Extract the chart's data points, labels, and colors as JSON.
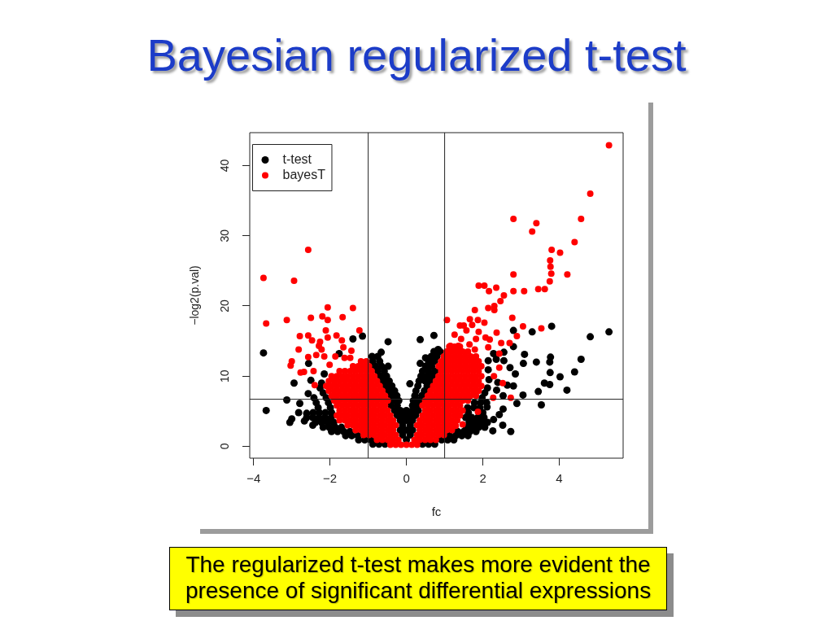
{
  "chart_data": {
    "type": "scatter",
    "title": "Bayesian regularized t-test",
    "xlabel": "fc",
    "ylabel": "−log2(p.val)",
    "xlim": [
      -4.1,
      5.67
    ],
    "ylim": [
      -1.7,
      44.7
    ],
    "xticks": [
      {
        "value": -4,
        "label": "−4"
      },
      {
        "value": -2,
        "label": "−2"
      },
      0,
      2,
      4
    ],
    "yticks": [
      0,
      10,
      20,
      30,
      40
    ],
    "legend": "top left",
    "marker": "circle",
    "ref_lines": [
      {
        "axis": "x",
        "value": -1
      },
      {
        "axis": "x",
        "value": 1
      },
      {
        "axis": "y",
        "value": 6.7
      }
    ],
    "annotations": [
      "The regularized t-test makes more evident the presence of significant differential expressions"
    ],
    "series": [
      {
        "name": "t-test",
        "color": "#000000",
        "x": [
          -0.56,
          -0.72,
          -0.88,
          -0.93,
          -1.09,
          -1.25,
          -1.27,
          -1.43,
          -1.59,
          -1.48,
          -1.64,
          -1.8,
          -1.96,
          -1.7,
          -1.86,
          -2.02,
          -2.18,
          -1.9,
          -2.06,
          -2.22,
          -2.38,
          -1.97,
          -2.13,
          -2.29,
          -2.45,
          -1.96,
          -2.12,
          -2.28,
          -2.44,
          -1.99,
          -2.31,
          -2.04,
          -2.36,
          -2.1,
          -2.42,
          -2.18,
          -2.26,
          -2.22,
          0.42,
          0.58,
          0.74,
          0.92,
          1.08,
          1.24,
          1.13,
          1.29,
          1.45,
          1.61,
          1.34,
          1.5,
          1.66,
          1.82,
          1.57,
          1.73,
          1.89,
          2.05,
          1.64,
          1.8,
          1.96,
          2.12,
          1.55,
          1.71,
          1.87,
          2.03,
          1.62,
          2,
          1.6,
          1.76,
          1.92,
          1.78,
          1.94,
          2.1,
          1.98,
          2.05,
          2.12,
          0,
          -0.1,
          0.1,
          -0.16,
          0,
          0.16,
          -0.1,
          0.1,
          -0.16,
          0,
          0.16,
          -0.24,
          -0.08,
          0.08,
          0.24,
          -0.31,
          -0.16,
          0,
          0.16,
          0.31,
          -0.4,
          -0.24,
          0.16,
          0.27,
          -0.34,
          -0.2,
          0.18,
          0.33,
          -0.4,
          -0.25,
          0.22,
          0.4,
          -0.47,
          -0.31,
          0.25,
          0.47,
          -0.54,
          -0.38,
          0.3,
          0.54,
          -0.61,
          -0.45,
          0.33,
          0.49,
          0.62,
          -0.68,
          -0.52,
          0.38,
          0.54,
          0.68,
          -0.75,
          -0.58,
          0.42,
          0.58,
          0.75,
          -0.82,
          -0.65,
          -0.48,
          0.5,
          0.66,
          -0.88,
          -0.7,
          0.58,
          0.74,
          -0.9,
          -0.75,
          0.65,
          0.8,
          0.72,
          0.88,
          0.09,
          -3.74,
          -3.67,
          -3.13,
          -2.94,
          -3,
          -3.05,
          -2.82,
          -2.79,
          -2.67,
          -2.61,
          -2.45,
          -2.57,
          -2.5,
          -2.56,
          -2.15,
          -1.76,
          -1.4,
          -1.15,
          -0.48,
          -0.66,
          -2.61,
          0.36,
          0.72,
          0.83,
          0.5,
          0.36,
          2.8,
          3.29,
          3.8,
          4.81,
          5.3,
          3.09,
          3.4,
          3.77,
          3.75,
          4.57,
          3.06,
          2.71,
          2.55,
          2.8,
          3.76,
          4.02,
          4.4,
          3.61,
          3.75,
          4.2,
          3.45,
          2.8,
          3.05,
          2.89,
          3.53,
          2.53,
          2.28,
          2.52,
          2.26,
          2.73,
          2.43,
          2.11,
          2.16,
          2.14,
          2.55,
          2.35,
          2.28,
          2.14,
          2.39,
          2.64,
          2.36,
          2.53,
          2.85
        ],
        "values": [
          0.3,
          0.3,
          0.3,
          0.9,
          0.9,
          0.9,
          1.5,
          1.5,
          1.5,
          2.1,
          2.1,
          2.1,
          2.1,
          2.7,
          2.7,
          2.7,
          2.7,
          3.4,
          3.4,
          3.4,
          3.4,
          4.1,
          4.1,
          4.1,
          4.1,
          4.8,
          4.8,
          4.8,
          4.8,
          5.5,
          5.5,
          6.2,
          6.2,
          6.9,
          6.9,
          7.6,
          8.3,
          9,
          0.3,
          0.3,
          0.3,
          0.9,
          0.9,
          0.9,
          1.5,
          1.5,
          1.5,
          1.5,
          2.1,
          2.1,
          2.1,
          2.1,
          2.7,
          2.7,
          2.7,
          2.7,
          3.4,
          3.4,
          3.4,
          3.4,
          4.1,
          4.1,
          4.1,
          4.1,
          4.8,
          4.8,
          5.5,
          5.5,
          5.5,
          6.2,
          6.2,
          6.2,
          6.9,
          7.6,
          8.3,
          0.9,
          1.6,
          1.6,
          2.3,
          2.3,
          2.3,
          3,
          3,
          3.7,
          3.7,
          3.7,
          4.4,
          4.4,
          4.4,
          4.4,
          5.1,
          5.1,
          5.1,
          5.1,
          5.1,
          5.8,
          5.8,
          5.8,
          5.8,
          6.5,
          6.5,
          6.5,
          6.5,
          7.2,
          7.2,
          7.2,
          7.2,
          7.9,
          7.9,
          7.9,
          7.9,
          8.6,
          8.6,
          8.6,
          8.6,
          9.3,
          9.3,
          9.3,
          9.3,
          9.3,
          10,
          10,
          10,
          10,
          10,
          10.7,
          10.7,
          10.7,
          10.7,
          10.7,
          11.4,
          11.4,
          11.4,
          11.4,
          11.4,
          12.1,
          12.1,
          12.1,
          12.1,
          12.8,
          12.8,
          12.8,
          12.8,
          13.5,
          13.5,
          8.9,
          13.3,
          5.1,
          6.6,
          9,
          3.9,
          3.4,
          4.8,
          6.1,
          3.6,
          4.1,
          3,
          7.5,
          9.4,
          11.8,
          10.3,
          13.2,
          15.3,
          15.7,
          14.9,
          13.4,
          4.7,
          15.2,
          15.8,
          13.8,
          12.6,
          11.8,
          16.5,
          16.3,
          17.1,
          15.6,
          16.3,
          13.1,
          12,
          12.7,
          12,
          12.4,
          11.8,
          11.2,
          13.4,
          14.2,
          10.5,
          9.9,
          10.6,
          9,
          8.8,
          8,
          7.8,
          8.6,
          7.3,
          6.1,
          5.9,
          5.3,
          3.8,
          3,
          2.2,
          2.1,
          4.5,
          5.6,
          9.5,
          10.9,
          12.2,
          12.4,
          13.2,
          12.2,
          9.1,
          8.7,
          8,
          7.2,
          10.3
        ]
      },
      {
        "name": "bayesT",
        "color": "#ff0000",
        "x": [
          0,
          -0.14,
          -0.28,
          -0.42,
          -0.21,
          -0.35,
          -0.49,
          -0.63,
          -0.77,
          -0.28,
          -0.42,
          -0.56,
          -0.7,
          -0.84,
          -0.98,
          -1.12,
          -0.35,
          -0.49,
          -0.63,
          -0.77,
          -0.91,
          -1.05,
          -1.19,
          -1.33,
          -0.28,
          -0.42,
          -0.56,
          -0.7,
          -0.84,
          -0.98,
          -1.12,
          -1.26,
          -1.4,
          -1.54,
          -0.35,
          -0.49,
          -0.63,
          -0.77,
          -0.91,
          -1.05,
          -1.19,
          -1.33,
          -1.47,
          -1.61,
          -1.75,
          -0.42,
          -0.56,
          -0.7,
          -0.84,
          -0.98,
          -1.12,
          -1.26,
          -1.4,
          -1.54,
          -1.68,
          -1.82,
          -0.49,
          -0.63,
          -0.77,
          -0.91,
          -1.05,
          -1.19,
          -1.33,
          -1.47,
          -1.61,
          -1.75,
          -0.56,
          -0.7,
          -0.84,
          -0.98,
          -1.12,
          -1.26,
          -1.4,
          -1.54,
          -1.68,
          -1.82,
          -0.49,
          -0.63,
          -0.77,
          -0.91,
          -1.05,
          -1.19,
          -1.33,
          -1.47,
          -1.61,
          -1.75,
          -1.89,
          -0.56,
          -0.7,
          -0.84,
          -0.98,
          -1.12,
          -1.26,
          -1.4,
          -1.54,
          -1.68,
          -1.82,
          -1.96,
          -0.63,
          -0.77,
          -0.91,
          -1.05,
          -1.19,
          -1.33,
          -1.47,
          -1.61,
          -1.75,
          -1.89,
          -2.03,
          -0.7,
          -0.84,
          -0.98,
          -1.12,
          -1.26,
          -1.4,
          -1.54,
          -1.68,
          -1.82,
          -1.96,
          -2.1,
          -0.77,
          -0.91,
          -1.05,
          -1.19,
          -1.33,
          -1.47,
          -1.61,
          -1.75,
          -1.89,
          -2.03,
          -0.84,
          -0.98,
          -1.12,
          -1.26,
          -1.4,
          -1.54,
          -1.68,
          -1.82,
          -1.96,
          -0.91,
          -1.05,
          -1.19,
          -1.33,
          -1.47,
          -1.61,
          -1.75,
          -0.98,
          -1.12,
          -1.26,
          -1.4,
          -1.05,
          -1.19,
          0.14,
          0.28,
          0.21,
          0.35,
          0.49,
          0.63,
          0.77,
          0.28,
          0.42,
          0.56,
          0.7,
          0.84,
          0.98,
          0.35,
          0.49,
          0.63,
          0.77,
          0.91,
          1.05,
          1.19,
          0.28,
          0.42,
          0.56,
          0.7,
          0.84,
          0.98,
          1.12,
          1.26,
          0.35,
          0.49,
          0.63,
          0.77,
          0.91,
          1.05,
          1.19,
          1.33,
          0.42,
          0.56,
          0.7,
          0.84,
          0.98,
          1.12,
          1.26,
          1.4,
          0.49,
          0.63,
          0.77,
          0.91,
          1.05,
          1.19,
          1.33,
          1.47,
          0.42,
          0.56,
          0.7,
          0.84,
          0.98,
          1.12,
          1.26,
          1.4,
          0.49,
          0.63,
          0.77,
          0.91,
          1.05,
          1.19,
          1.33,
          1.47,
          1.61,
          0.56,
          0.7,
          0.84,
          0.98,
          1.12,
          1.26,
          1.4,
          1.54,
          1.68,
          1.82,
          0.63,
          0.77,
          0.91,
          1.05,
          1.19,
          1.33,
          1.47,
          1.61,
          1.75,
          1.89,
          0.7,
          0.84,
          0.98,
          1.12,
          1.26,
          1.4,
          1.54,
          1.68,
          1.82,
          1.96,
          0.77,
          0.91,
          1.05,
          1.19,
          1.33,
          1.47,
          1.61,
          1.75,
          1.89,
          0.84,
          0.98,
          1.12,
          1.26,
          1.4,
          1.54,
          1.68,
          1.82,
          1.96,
          0.91,
          1.05,
          1.19,
          1.33,
          1.47,
          1.61,
          1.75,
          1.89,
          0.84,
          0.98,
          1.12,
          1.26,
          1.4,
          1.54,
          1.68,
          1.82,
          1.96,
          0.91,
          1.05,
          1.19,
          1.33,
          1.47,
          1.61,
          1.75,
          1.89,
          0.98,
          1.12,
          1.26,
          1.4,
          1.54,
          1.68,
          1.82,
          1.05,
          1.19,
          1.33,
          1.47,
          1.61,
          1.12,
          1.26,
          1.4,
          -3.74,
          -2.57,
          -2.94,
          -3.67,
          -3.13,
          -2.5,
          -2.2,
          -2.06,
          -2.06,
          -1.67,
          -1.4,
          -2.79,
          -2.57,
          -2.47,
          -2.82,
          -2.57,
          -3,
          -3.03,
          -2.77,
          -2.68,
          -2.43,
          -2.26,
          -2.29,
          -2.06,
          -2.11,
          -1.83,
          -1.69,
          -1.65,
          -1.44,
          -1.47,
          -1.23,
          -2.36,
          -2.15,
          -2.01,
          -2.22,
          -1.86,
          -1.62,
          -2.4,
          5.3,
          4.81,
          4.57,
          2.8,
          3.4,
          3.29,
          4.4,
          3.8,
          4.02,
          3.76,
          3.77,
          3.79,
          4.21,
          2.8,
          3.75,
          3.45,
          3.62,
          3.08,
          2.8,
          1.89,
          2.04,
          2.35,
          2.16,
          2.55,
          2.46,
          2.3,
          2.14,
          2.3,
          1.79,
          2.77,
          1.06,
          1.66,
          1.87,
          1.4,
          1.5,
          1.72,
          2.04,
          2.36,
          1.89,
          1.57,
          1.26,
          1.43,
          1.82,
          2.07,
          3.05,
          3.53,
          2.89,
          2.48,
          2.7,
          1.15,
          1.36,
          1.65,
          1.79,
          2.18,
          2.14,
          2.43,
          2.52,
          2.29,
          2.73,
          2.27,
          1.87,
          1.29,
          1.47,
          2.43
        ],
        "values": [
          0.2,
          0.2,
          0.2,
          0.2,
          0.9,
          0.9,
          0.9,
          0.9,
          0.9,
          1.6,
          1.6,
          1.6,
          1.6,
          1.6,
          1.6,
          1.6,
          2.3,
          2.3,
          2.3,
          2.3,
          2.3,
          2.3,
          2.3,
          2.3,
          3,
          3,
          3,
          3,
          3,
          3,
          3,
          3,
          3,
          3,
          3.7,
          3.7,
          3.7,
          3.7,
          3.7,
          3.7,
          3.7,
          3.7,
          3.7,
          3.7,
          3.7,
          4.4,
          4.4,
          4.4,
          4.4,
          4.4,
          4.4,
          4.4,
          4.4,
          4.4,
          4.4,
          4.4,
          5.1,
          5.1,
          5.1,
          5.1,
          5.1,
          5.1,
          5.1,
          5.1,
          5.1,
          5.1,
          5.8,
          5.8,
          5.8,
          5.8,
          5.8,
          5.8,
          5.8,
          5.8,
          5.8,
          5.8,
          6.5,
          6.5,
          6.5,
          6.5,
          6.5,
          6.5,
          6.5,
          6.5,
          6.5,
          6.5,
          6.5,
          7.2,
          7.2,
          7.2,
          7.2,
          7.2,
          7.2,
          7.2,
          7.2,
          7.2,
          7.2,
          7.2,
          7.9,
          7.9,
          7.9,
          7.9,
          7.9,
          7.9,
          7.9,
          7.9,
          7.9,
          7.9,
          7.9,
          8.6,
          8.6,
          8.6,
          8.6,
          8.6,
          8.6,
          8.6,
          8.6,
          8.6,
          8.6,
          8.6,
          9.3,
          9.3,
          9.3,
          9.3,
          9.3,
          9.3,
          9.3,
          9.3,
          9.3,
          9.3,
          10,
          10,
          10,
          10,
          10,
          10,
          10,
          10,
          10,
          10.7,
          10.7,
          10.7,
          10.7,
          10.7,
          10.7,
          10.7,
          11.4,
          11.4,
          11.4,
          11.4,
          12.1,
          12.1,
          0.2,
          0.2,
          0.9,
          0.9,
          0.9,
          0.9,
          0.9,
          1.6,
          1.6,
          1.6,
          1.6,
          1.6,
          1.6,
          2.3,
          2.3,
          2.3,
          2.3,
          2.3,
          2.3,
          2.3,
          3,
          3,
          3,
          3,
          3,
          3,
          3,
          3,
          3.7,
          3.7,
          3.7,
          3.7,
          3.7,
          3.7,
          3.7,
          3.7,
          4.4,
          4.4,
          4.4,
          4.4,
          4.4,
          4.4,
          4.4,
          4.4,
          5.1,
          5.1,
          5.1,
          5.1,
          5.1,
          5.1,
          5.1,
          5.1,
          5.8,
          5.8,
          5.8,
          5.8,
          5.8,
          5.8,
          5.8,
          5.8,
          6.5,
          6.5,
          6.5,
          6.5,
          6.5,
          6.5,
          6.5,
          6.5,
          6.5,
          7.2,
          7.2,
          7.2,
          7.2,
          7.2,
          7.2,
          7.2,
          7.2,
          7.2,
          7.2,
          7.9,
          7.9,
          7.9,
          7.9,
          7.9,
          7.9,
          7.9,
          7.9,
          7.9,
          7.9,
          8.6,
          8.6,
          8.6,
          8.6,
          8.6,
          8.6,
          8.6,
          8.6,
          8.6,
          8.6,
          9.3,
          9.3,
          9.3,
          9.3,
          9.3,
          9.3,
          9.3,
          9.3,
          9.3,
          10,
          10,
          10,
          10,
          10,
          10,
          10,
          10,
          10,
          10.7,
          10.7,
          10.7,
          10.7,
          10.7,
          10.7,
          10.7,
          10.7,
          11.4,
          11.4,
          11.4,
          11.4,
          11.4,
          11.4,
          11.4,
          11.4,
          11.4,
          12.1,
          12.1,
          12.1,
          12.1,
          12.1,
          12.1,
          12.1,
          12.1,
          12.8,
          12.8,
          12.8,
          12.8,
          12.8,
          12.8,
          12.8,
          13.5,
          13.5,
          13.5,
          13.5,
          13.5,
          14.2,
          14.2,
          14.2,
          24,
          28,
          23.6,
          17.5,
          18,
          18.3,
          18.5,
          19.8,
          18,
          18.4,
          19.7,
          15.7,
          15.8,
          15.1,
          13.8,
          12.7,
          12.1,
          11.5,
          10.5,
          10.6,
          10.7,
          14.9,
          14.3,
          15.5,
          16.5,
          15.8,
          15.1,
          14.1,
          13.6,
          12.6,
          16.5,
          13,
          12.8,
          11.6,
          13.8,
          12.8,
          12.6,
          8.7,
          42.9,
          36,
          32.4,
          32.4,
          31.8,
          30.6,
          29.1,
          28,
          27.6,
          26.5,
          25.6,
          24.6,
          24.5,
          24.5,
          23.5,
          22.4,
          22.4,
          22.1,
          22.1,
          22.9,
          22.9,
          22.6,
          22.1,
          21.5,
          20.7,
          20,
          19.7,
          19.4,
          19.4,
          18.3,
          18,
          18.1,
          18,
          17.2,
          17.2,
          17.3,
          17.6,
          16.2,
          16.3,
          16.5,
          15.9,
          15.3,
          15.3,
          15.5,
          17.1,
          16.8,
          15.7,
          14.7,
          14.7,
          14.3,
          14.3,
          14.5,
          13.8,
          15.2,
          14.1,
          11.2,
          9,
          10,
          6.9,
          6.9,
          4.9,
          2.9,
          3.1,
          13.2
        ]
      }
    ]
  }
}
